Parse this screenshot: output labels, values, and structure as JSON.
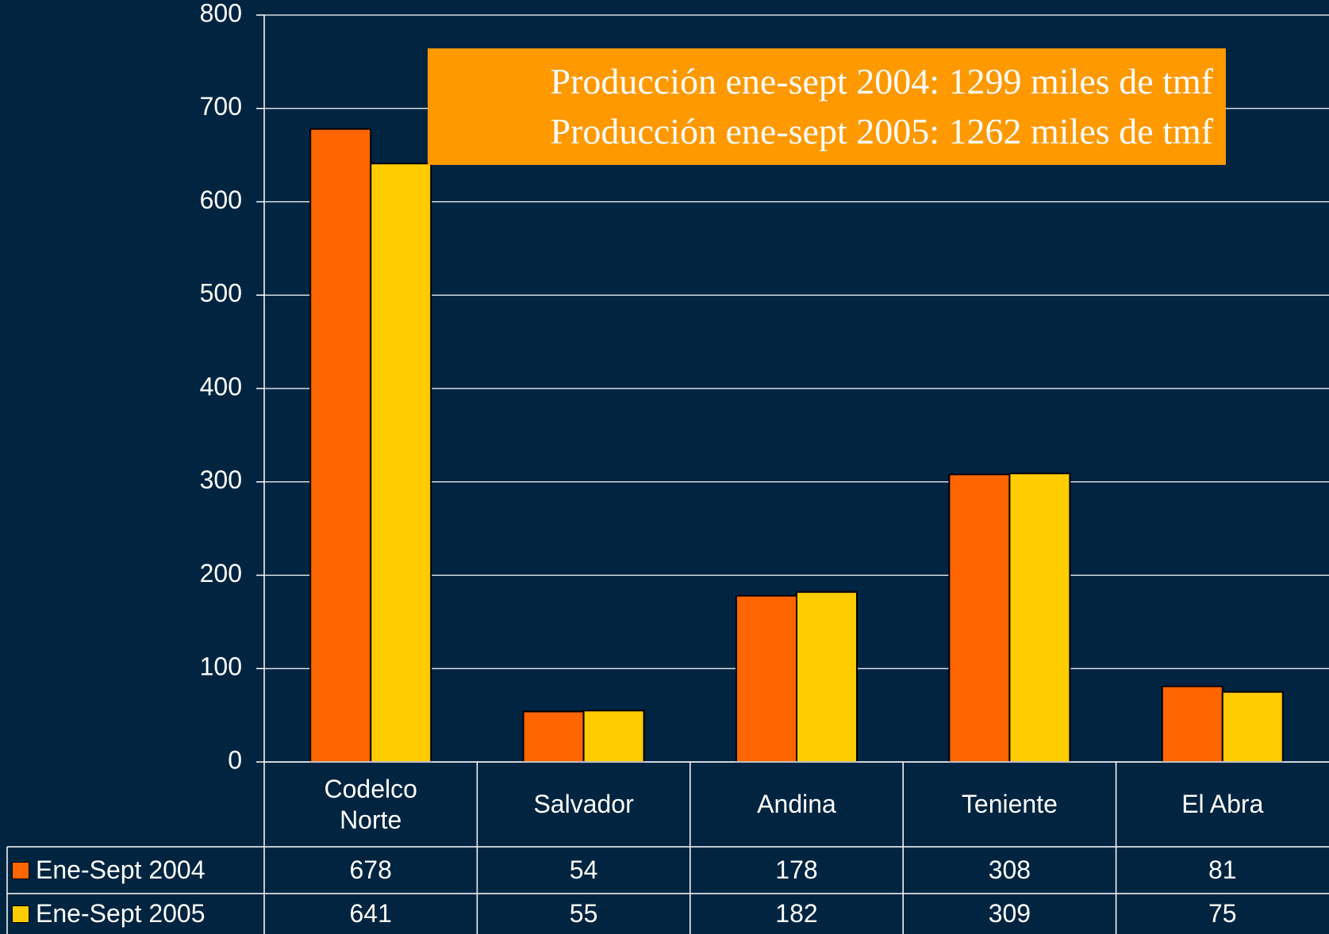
{
  "chart_data": {
    "type": "bar",
    "annotation": [
      "Producción ene-sept 2004: 1299 miles de tmf",
      "Producción ene-sept 2005: 1262 miles de tmf"
    ],
    "categories": [
      "Codelco Norte",
      "Salvador",
      "Andina",
      "Teniente",
      "El Abra"
    ],
    "series": [
      {
        "name": "Ene-Sept 2004",
        "color": "#ff6600",
        "values": [
          678,
          54,
          178,
          308,
          81
        ]
      },
      {
        "name": "Ene-Sept 2005",
        "color": "#ffcc00",
        "values": [
          641,
          55,
          182,
          309,
          75
        ]
      }
    ],
    "ylim": [
      0,
      800
    ],
    "yticks": [
      0,
      100,
      200,
      300,
      400,
      500,
      600,
      700,
      800
    ],
    "grid": true
  }
}
